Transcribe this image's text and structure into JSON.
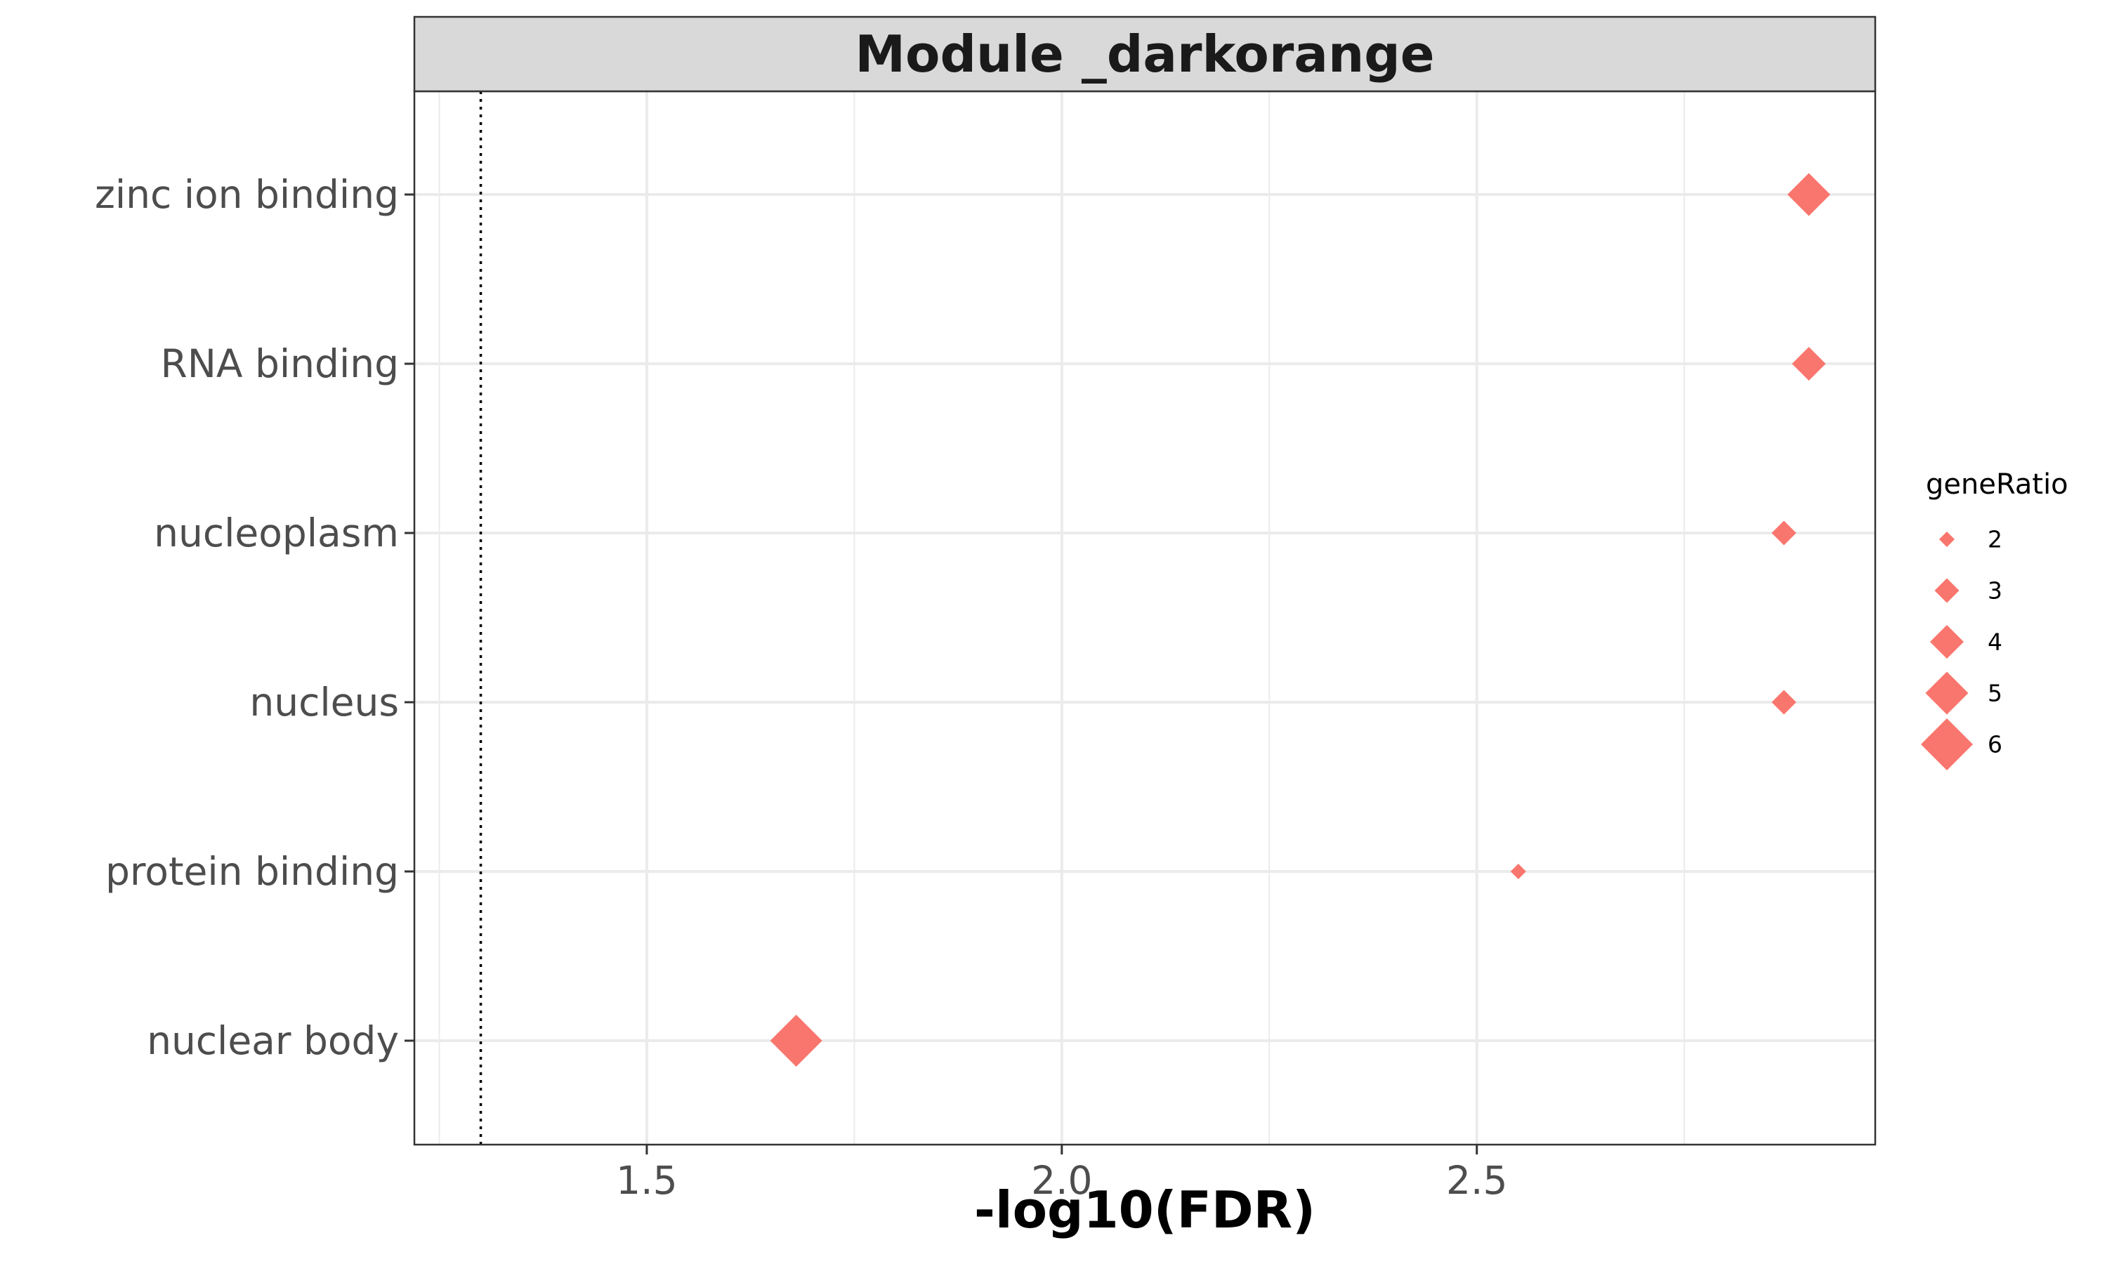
{
  "chart_data": {
    "type": "scatter",
    "title": "Module _darkorange",
    "xlabel": "-log10(FDR)",
    "ylabel": "",
    "xlim": [
      1.22,
      2.98
    ],
    "xticks": [
      1.5,
      2.0,
      2.5
    ],
    "xtick_labels": [
      "1.5",
      "2.0",
      "2.5"
    ],
    "x_minor_gridlines": [
      1.25,
      1.75,
      2.25,
      2.75
    ],
    "reference_line_x": 1.3,
    "reference_line_style": "dotted",
    "categories": [
      "zinc ion binding",
      "RNA binding",
      "nucleoplasm",
      "nucleus",
      "protein binding",
      "nuclear body"
    ],
    "points": [
      {
        "term": "zinc ion binding",
        "x": 2.9,
        "geneRatio": 5
      },
      {
        "term": "RNA binding",
        "x": 2.9,
        "geneRatio": 4
      },
      {
        "term": "nucleoplasm",
        "x": 2.87,
        "geneRatio": 3
      },
      {
        "term": "nucleus",
        "x": 2.87,
        "geneRatio": 3
      },
      {
        "term": "protein binding",
        "x": 2.55,
        "geneRatio": 2
      },
      {
        "term": "nuclear body",
        "x": 1.68,
        "geneRatio": 6
      }
    ],
    "marker": "diamond",
    "marker_color": "#F8766D",
    "legend": {
      "title": "geneRatio",
      "position": "right",
      "entries": [
        2,
        3,
        4,
        5,
        6
      ]
    },
    "grid": true,
    "theme": {
      "strip_fill": "#D9D9D9",
      "panel_border": "#333333",
      "grid_color": "#EBEBEB",
      "reference_line_color": "#000000"
    }
  }
}
